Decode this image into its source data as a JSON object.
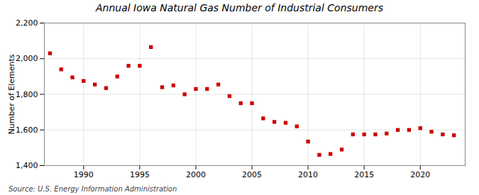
{
  "chart_data": {
    "type": "scatter",
    "title": "Annual Iowa Natural Gas Number of Industrial Consumers",
    "ylabel": "Number of Elements",
    "annotations": [
      "Source: U.S. Energy Information Administration"
    ],
    "x": [
      1987,
      1988,
      1989,
      1990,
      1991,
      1992,
      1993,
      1994,
      1995,
      1996,
      1997,
      1998,
      1999,
      2000,
      2001,
      2002,
      2003,
      2004,
      2005,
      2006,
      2007,
      2008,
      2009,
      2010,
      2011,
      2012,
      2013,
      2014,
      2015,
      2016,
      2017,
      2018,
      2019,
      2020,
      2021,
      2022,
      2023
    ],
    "values": [
      2030,
      1940,
      1895,
      1875,
      1855,
      1835,
      1900,
      1960,
      1960,
      2065,
      1840,
      1850,
      1800,
      1830,
      1830,
      1855,
      1790,
      1750,
      1750,
      1665,
      1645,
      1640,
      1620,
      1535,
      1460,
      1465,
      1490,
      1575,
      1575,
      1575,
      1580,
      1600,
      1600,
      1610,
      1590,
      1575,
      1570
    ],
    "color": "#cc0000",
    "marker": "square",
    "xlim": [
      1986.5,
      2024
    ],
    "xticks": [
      1990,
      1995,
      2000,
      2005,
      2010,
      2015,
      2020
    ],
    "ylim": [
      1400,
      2200
    ],
    "yticks": [
      {
        "value": 1400,
        "label": "1,400"
      },
      {
        "value": 1600,
        "label": "1,600"
      },
      {
        "value": 1800,
        "label": "1,800"
      },
      {
        "value": 2000,
        "label": "2,000"
      },
      {
        "value": 2200,
        "label": "2,200"
      }
    ],
    "grid": true
  }
}
